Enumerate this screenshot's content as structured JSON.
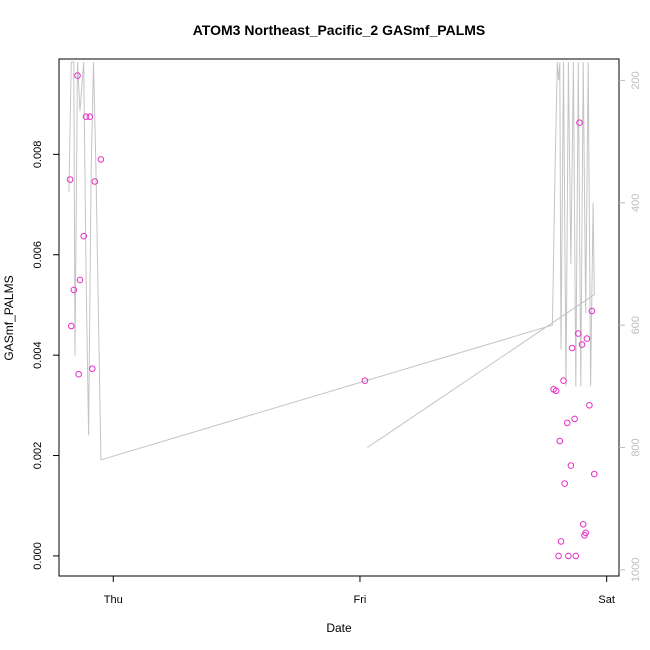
{
  "chart_data": {
    "type": "scatter",
    "title": "ATOM3 Northeast_Pacific_2 GASmf_PALMS",
    "xlabel": "Date",
    "ylabel": "GASmf_PALMS",
    "xlim": [
      -0.22,
      2.05
    ],
    "ylim": [
      -0.0004,
      0.0099
    ],
    "x_ticks": [
      {
        "value": 0,
        "label": "Thu"
      },
      {
        "value": 1,
        "label": "Fri"
      },
      {
        "value": 2,
        "label": "Sat"
      }
    ],
    "y_ticks": [
      {
        "value": 0.0,
        "label": "0.000"
      },
      {
        "value": 0.002,
        "label": "0.002"
      },
      {
        "value": 0.004,
        "label": "0.004"
      },
      {
        "value": 0.006,
        "label": "0.006"
      },
      {
        "value": 0.008,
        "label": "0.008"
      }
    ],
    "right_axis": {
      "ylim": [
        1010,
        165
      ],
      "ticks": [
        200,
        400,
        600,
        800,
        1000
      ],
      "color": "#bdbdbd"
    },
    "series": [
      {
        "color": "#e62fc6",
        "marker": "open-circle",
        "points": [
          [
            -0.175,
            0.0075
          ],
          [
            -0.17,
            0.00458
          ],
          [
            -0.16,
            0.0053
          ],
          [
            -0.145,
            0.00957
          ],
          [
            -0.14,
            0.00362
          ],
          [
            -0.135,
            0.0055
          ],
          [
            -0.12,
            0.00637
          ],
          [
            -0.11,
            0.00875
          ],
          [
            -0.095,
            0.00875
          ],
          [
            -0.085,
            0.00373
          ],
          [
            -0.075,
            0.00746
          ],
          [
            -0.05,
            0.0079
          ],
          [
            1.02,
            0.00349
          ],
          [
            1.785,
            0.00332
          ],
          [
            1.795,
            0.00329
          ],
          [
            1.805,
            0.0
          ],
          [
            1.81,
            0.00229
          ],
          [
            1.815,
            0.00029
          ],
          [
            1.825,
            0.00349
          ],
          [
            1.83,
            0.00144
          ],
          [
            1.84,
            0.00265
          ],
          [
            1.845,
            0.0
          ],
          [
            1.855,
            0.0018
          ],
          [
            1.86,
            0.00414
          ],
          [
            1.87,
            0.00273
          ],
          [
            1.875,
            0.0
          ],
          [
            1.885,
            0.00443
          ],
          [
            1.89,
            0.00863
          ],
          [
            1.9,
            0.00421
          ],
          [
            1.905,
            0.00063
          ],
          [
            1.91,
            0.00041
          ],
          [
            1.915,
            0.00046
          ],
          [
            1.92,
            0.00433
          ],
          [
            1.93,
            0.003
          ],
          [
            1.94,
            0.00488
          ],
          [
            1.95,
            0.00163
          ]
        ]
      }
    ],
    "pressure_line": {
      "color": "#c4c4c4",
      "points": [
        [
          -0.18,
          382
        ],
        [
          -0.17,
          170
        ],
        [
          -0.16,
          170
        ],
        [
          -0.155,
          650
        ],
        [
          -0.145,
          170
        ],
        [
          -0.135,
          250
        ],
        [
          -0.12,
          170
        ],
        [
          -0.11,
          520
        ],
        [
          -0.1,
          780
        ],
        [
          -0.09,
          350
        ],
        [
          -0.08,
          170
        ],
        [
          -0.07,
          350
        ],
        [
          -0.05,
          820
        ],
        [
          1.78,
          600
        ],
        [
          1.79,
          360
        ],
        [
          1.8,
          170
        ],
        [
          1.805,
          200
        ],
        [
          1.81,
          170
        ],
        [
          1.815,
          640
        ],
        [
          1.825,
          170
        ],
        [
          1.835,
          700
        ],
        [
          1.845,
          170
        ],
        [
          1.855,
          500
        ],
        [
          1.865,
          170
        ],
        [
          1.875,
          700
        ],
        [
          1.885,
          170
        ],
        [
          1.895,
          700
        ],
        [
          1.905,
          170
        ],
        [
          1.915,
          580
        ],
        [
          1.925,
          170
        ],
        [
          1.935,
          700
        ],
        [
          1.945,
          400
        ],
        [
          1.95,
          550
        ],
        [
          1.03,
          800
        ]
      ]
    }
  }
}
